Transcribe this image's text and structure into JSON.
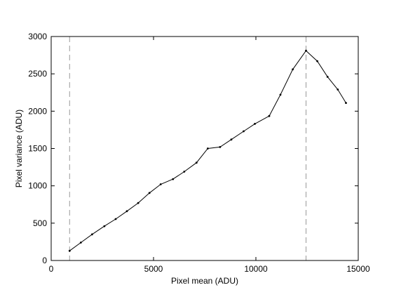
{
  "chart_data": {
    "type": "line",
    "title": "",
    "xlabel": "Pixel mean (ADU)",
    "ylabel": "Pixel variance (ADU)",
    "xlim": [
      0,
      15000
    ],
    "ylim": [
      0,
      3000
    ],
    "x_ticks": [
      0,
      5000,
      10000,
      15000
    ],
    "x_tick_labels": [
      "0",
      "5000",
      "10000",
      "15000"
    ],
    "y_ticks": [
      0,
      500,
      1000,
      1500,
      2000,
      2500,
      3000
    ],
    "y_tick_labels": [
      "0",
      "500",
      "1000",
      "1500",
      "2000",
      "2500",
      "3000"
    ],
    "grid": false,
    "legend": false,
    "series": [
      {
        "color": "#000000",
        "marker": "dot",
        "x": [
          900,
          1450,
          2000,
          2600,
          3150,
          3700,
          4250,
          4800,
          5350,
          5950,
          6500,
          7100,
          7650,
          8250,
          8800,
          9400,
          9950,
          10650,
          11200,
          11800,
          12450,
          13000,
          13500,
          14000,
          14400
        ],
        "y": [
          130,
          240,
          350,
          460,
          555,
          660,
          770,
          905,
          1020,
          1090,
          1190,
          1310,
          1500,
          1520,
          1620,
          1730,
          1830,
          1935,
          2220,
          2560,
          2810,
          2670,
          2460,
          2290,
          2110
        ]
      }
    ],
    "reference_lines": [
      {
        "axis": "x",
        "value": 900,
        "color": "#999999",
        "style": "dashed"
      },
      {
        "axis": "x",
        "value": 12450,
        "color": "#999999",
        "style": "dashed"
      }
    ]
  }
}
